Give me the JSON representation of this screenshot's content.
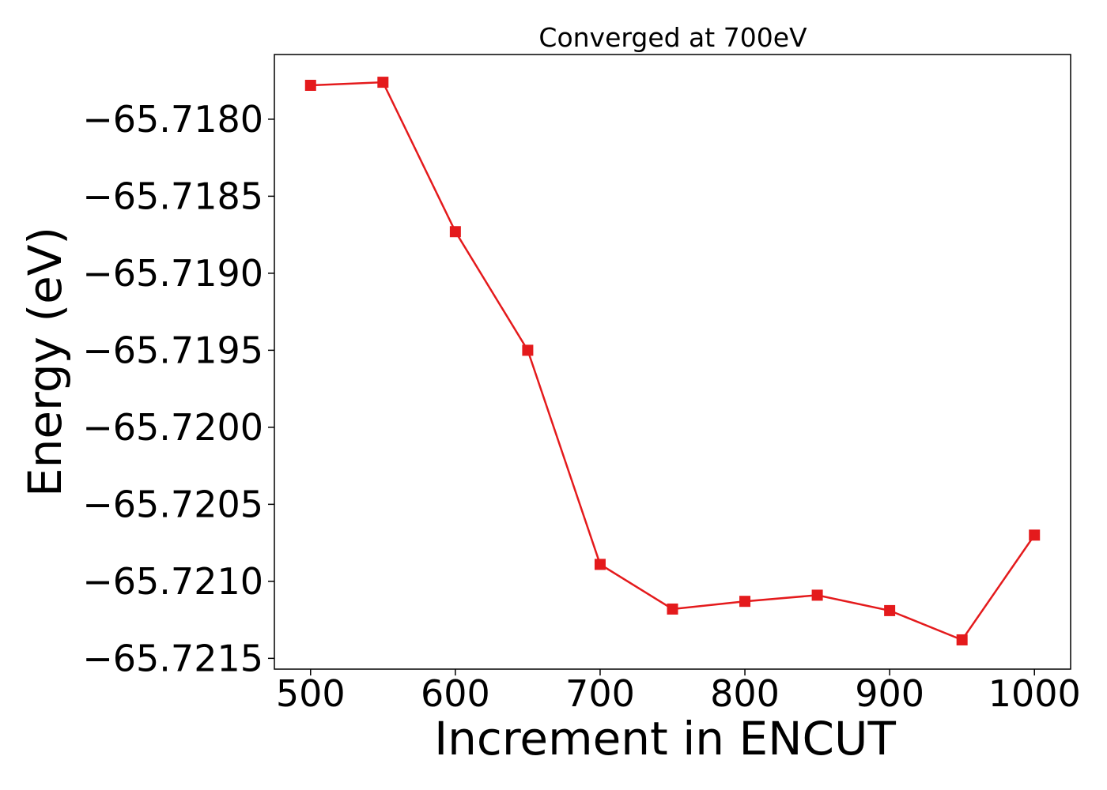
{
  "chart_data": {
    "type": "line",
    "title": "Converged at 700eV",
    "xlabel": "Increment in ENCUT",
    "ylabel": "Energy (eV)",
    "x": [
      500,
      550,
      600,
      650,
      700,
      750,
      800,
      850,
      900,
      950,
      1000
    ],
    "series": [
      {
        "values": [
          -65.71778,
          -65.71776,
          -65.71873,
          -65.7195,
          -65.72089,
          -65.72118,
          -65.72113,
          -65.72109,
          -65.72119,
          -65.72138,
          -65.7207
        ],
        "color": "#e41a1c",
        "marker": "square"
      }
    ],
    "xlim": [
      475,
      1025
    ],
    "ylim": [
      -65.72157,
      -65.71758
    ],
    "xticks": [
      500,
      600,
      700,
      800,
      900,
      1000
    ],
    "xtick_labels": [
      "500",
      "600",
      "700",
      "800",
      "900",
      "1000"
    ],
    "yticks": [
      -65.718,
      -65.7185,
      -65.719,
      -65.7195,
      -65.72,
      -65.7205,
      -65.721,
      -65.7215
    ],
    "ytick_labels": [
      "−65.7180",
      "−65.7185",
      "−65.7190",
      "−65.7195",
      "−65.7200",
      "−65.7205",
      "−65.7210",
      "−65.7215"
    ],
    "grid": false,
    "legend": "none"
  }
}
